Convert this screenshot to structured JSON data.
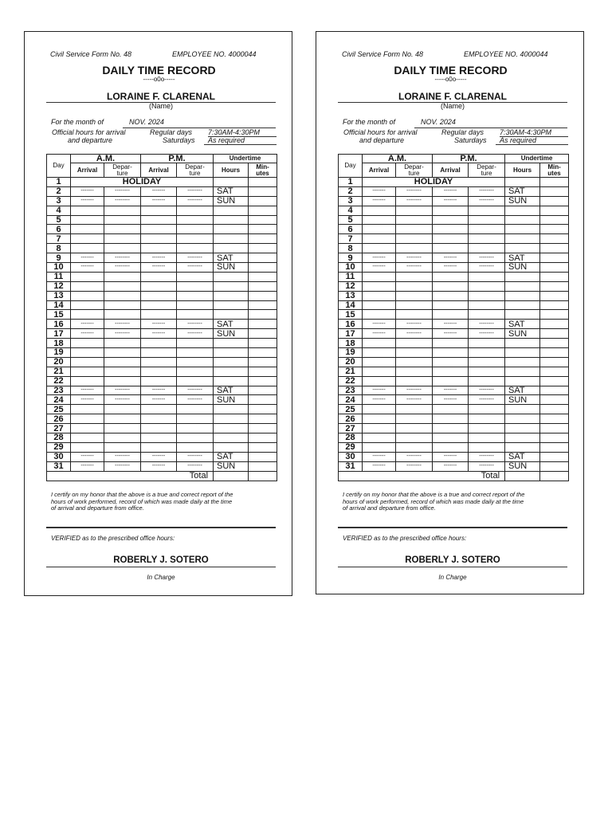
{
  "form": {
    "form_no": "Civil Service Form No. 48",
    "employee_no": "EMPLOYEE NO. 4000044",
    "title": "DAILY TIME RECORD",
    "ornament": "-----o0o-----",
    "name": "LORAINE F. CLARENAL",
    "name_label": "(Name)",
    "month_label": "For the month of",
    "month": "NOV.  2024",
    "hours_label_1": "Official hours for arrival",
    "hours_label_2": "and departure",
    "regular_label": "Regular days",
    "regular_hours": "7:30AM-4:30PM",
    "saturday_label": "Saturdays",
    "saturday_hours": "As required",
    "headers": {
      "day": "Day",
      "am": "A.M.",
      "pm": "P.M.",
      "undertime": "Undertime",
      "arrival": "Arrival",
      "departure": "Depar-ture",
      "hours": "Hours",
      "minutes": "Min-utes"
    },
    "rows": [
      {
        "day": "1",
        "holiday": "HOLIDAY"
      },
      {
        "day": "2",
        "dash": true,
        "note": "SAT"
      },
      {
        "day": "3",
        "dash": true,
        "note": "SUN"
      },
      {
        "day": "4"
      },
      {
        "day": "5"
      },
      {
        "day": "6"
      },
      {
        "day": "7"
      },
      {
        "day": "8"
      },
      {
        "day": "9",
        "dash": true,
        "note": "SAT"
      },
      {
        "day": "10",
        "dash": true,
        "note": "SUN"
      },
      {
        "day": "11"
      },
      {
        "day": "12"
      },
      {
        "day": "13"
      },
      {
        "day": "14"
      },
      {
        "day": "15"
      },
      {
        "day": "16",
        "dash": true,
        "note": "SAT"
      },
      {
        "day": "17",
        "dash": true,
        "note": "SUN"
      },
      {
        "day": "18"
      },
      {
        "day": "19"
      },
      {
        "day": "20"
      },
      {
        "day": "21"
      },
      {
        "day": "22"
      },
      {
        "day": "23",
        "dash": true,
        "note": "SAT"
      },
      {
        "day": "24",
        "dash": true,
        "note": "SUN"
      },
      {
        "day": "25"
      },
      {
        "day": "26"
      },
      {
        "day": "27"
      },
      {
        "day": "28"
      },
      {
        "day": "29"
      },
      {
        "day": "30",
        "dash": true,
        "note": "SAT"
      },
      {
        "day": "31",
        "dash": true,
        "note": "SUN"
      }
    ],
    "dash_arrival": "-------",
    "dash_departure": "--------",
    "total_label": "Total",
    "certify_1": "I certify on my honor that the above is a true and correct report of the",
    "certify_2": "hours of work performed, record of which was made daily at the time",
    "certify_3": "of arrival and departure from office.",
    "verified": "VERIFIED as to the prescribed office hours:",
    "verifier": "ROBERLY J. SOTERO",
    "verifier_role": "In Charge"
  }
}
